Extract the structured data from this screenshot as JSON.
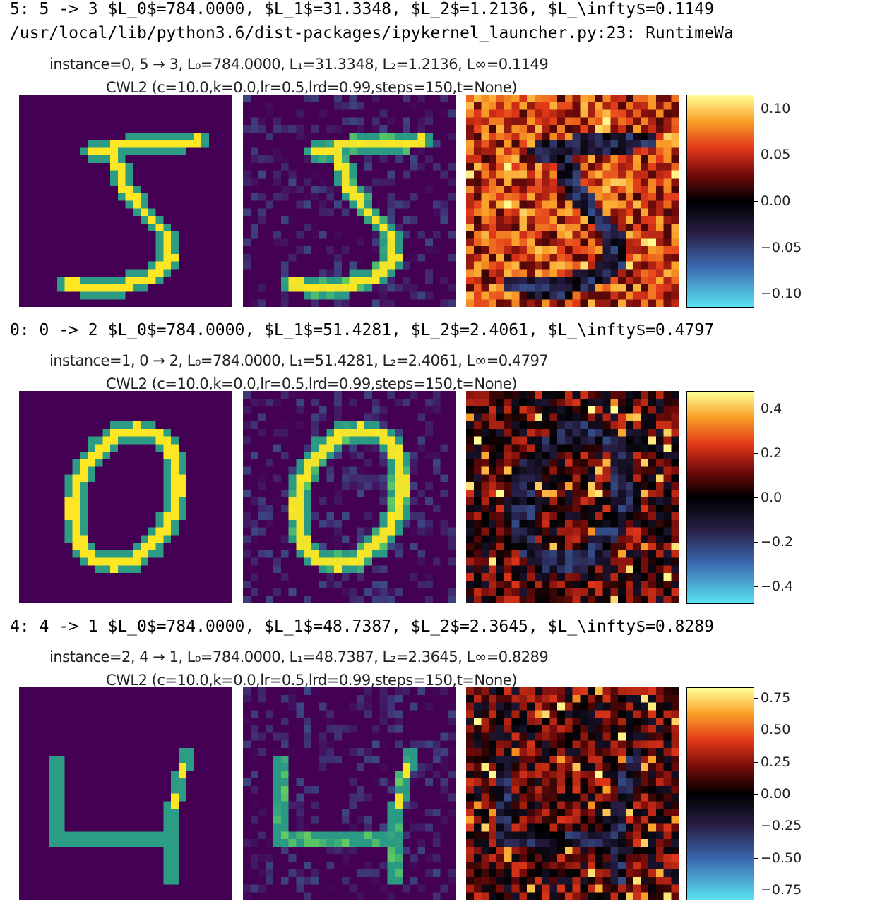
{
  "log": {
    "row0_line1": "5: 5 -> 3 $L_0$=784.0000, $L_1$=31.3348, $L_2$=1.2136, $L_\\infty$=0.1149",
    "row0_line2": "/usr/local/lib/python3.6/dist-packages/ipykernel_launcher.py:23: RuntimeWa",
    "row1_line1": "0: 0 -> 2 $L_0$=784.0000, $L_1$=51.4281, $L_2$=2.4061, $L_\\infty$=0.4797",
    "row2_line1": "4: 4 -> 1 $L_0$=784.0000, $L_1$=48.7387, $L_2$=2.3645, $L_\\infty$=0.8289"
  },
  "figures": [
    {
      "title": "instance=0, 5 → 3, L₀=784.0000, L₁=31.3348, L₂=1.2136, L∞=0.1149",
      "subtitle": "CWL2 (c=10.0,k=0.0,lr=0.5,lrd=0.99,steps=150,t=None)",
      "colorbar_ticks": [
        "0.10",
        "0.05",
        "0.00",
        "−0.05",
        "−0.10"
      ],
      "colorbar_range": [
        -0.115,
        0.115
      ],
      "digit": "5"
    },
    {
      "title": "instance=1, 0 → 2, L₀=784.0000, L₁=51.4281, L₂=2.4061, L∞=0.4797",
      "subtitle": "CWL2 (c=10.0,k=0.0,lr=0.5,lrd=0.99,steps=150,t=None)",
      "colorbar_ticks": [
        "0.4",
        "0.2",
        "0.0",
        "−0.2",
        "−0.4"
      ],
      "colorbar_range": [
        -0.48,
        0.48
      ],
      "digit": "0"
    },
    {
      "title": "instance=2, 4 → 1, L₀=784.0000, L₁=48.7387, L₂=2.3645, L∞=0.8289",
      "subtitle": "CWL2 (c=10.0,k=0.0,lr=0.5,lrd=0.99,steps=150,t=None)",
      "colorbar_ticks": [
        "0.75",
        "0.50",
        "0.25",
        "0.00",
        "−0.25",
        "−0.50",
        "−0.75"
      ],
      "colorbar_range": [
        -0.83,
        0.83
      ],
      "digit": "4"
    }
  ],
  "colormaps": {
    "image": "viridis",
    "difference": "cmr.iceburn-like diverging"
  }
}
